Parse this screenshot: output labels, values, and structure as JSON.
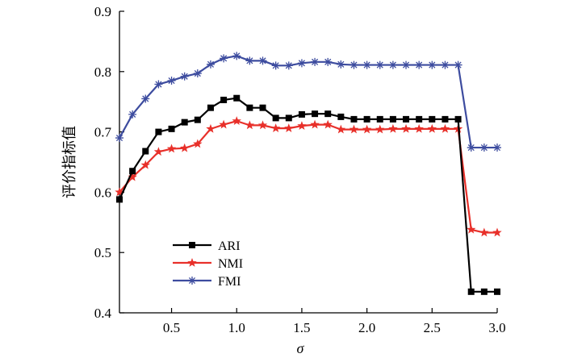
{
  "chart_data": {
    "type": "line",
    "xlabel": "σ",
    "ylabel": "评价指标值",
    "xlim": [
      0.1,
      3.0
    ],
    "ylim": [
      0.4,
      0.9
    ],
    "xticks": [
      0.5,
      1.0,
      1.5,
      2.0,
      2.5,
      3.0
    ],
    "xtick_labels": [
      "0.5",
      "1.0",
      "1.5",
      "2.0",
      "2.5",
      "3.0"
    ],
    "yticks": [
      0.4,
      0.5,
      0.6,
      0.7,
      0.8,
      0.9
    ],
    "ytick_labels": [
      "0.4",
      "0.5",
      "0.6",
      "0.7",
      "0.8",
      "0.9"
    ],
    "grid": false,
    "legend_position": "lower-left",
    "x": [
      0.1,
      0.2,
      0.3,
      0.4,
      0.5,
      0.6,
      0.7,
      0.8,
      0.9,
      1.0,
      1.1,
      1.2,
      1.3,
      1.4,
      1.5,
      1.6,
      1.7,
      1.8,
      1.9,
      2.0,
      2.1,
      2.2,
      2.3,
      2.4,
      2.5,
      2.6,
      2.7,
      2.8,
      2.9,
      3.0
    ],
    "series": [
      {
        "name": "ARI",
        "color": "#000000",
        "marker": "square",
        "values": [
          0.588,
          0.635,
          0.668,
          0.7,
          0.705,
          0.716,
          0.72,
          0.74,
          0.753,
          0.756,
          0.74,
          0.74,
          0.723,
          0.723,
          0.729,
          0.73,
          0.73,
          0.725,
          0.721,
          0.721,
          0.721,
          0.721,
          0.721,
          0.721,
          0.721,
          0.721,
          0.721,
          0.435,
          0.435,
          0.435
        ]
      },
      {
        "name": "NMI",
        "color": "#e8302a",
        "marker": "star",
        "values": [
          0.6,
          0.625,
          0.645,
          0.667,
          0.672,
          0.673,
          0.68,
          0.705,
          0.712,
          0.718,
          0.711,
          0.711,
          0.706,
          0.706,
          0.71,
          0.712,
          0.712,
          0.704,
          0.704,
          0.704,
          0.704,
          0.705,
          0.705,
          0.705,
          0.705,
          0.705,
          0.705,
          0.538,
          0.533,
          0.533
        ]
      },
      {
        "name": "FMI",
        "color": "#3d4c9f",
        "marker": "asterisk",
        "values": [
          0.69,
          0.729,
          0.755,
          0.779,
          0.785,
          0.792,
          0.797,
          0.812,
          0.822,
          0.826,
          0.818,
          0.818,
          0.81,
          0.81,
          0.814,
          0.816,
          0.816,
          0.812,
          0.811,
          0.811,
          0.811,
          0.811,
          0.811,
          0.811,
          0.811,
          0.811,
          0.811,
          0.674,
          0.674,
          0.674
        ]
      }
    ]
  }
}
